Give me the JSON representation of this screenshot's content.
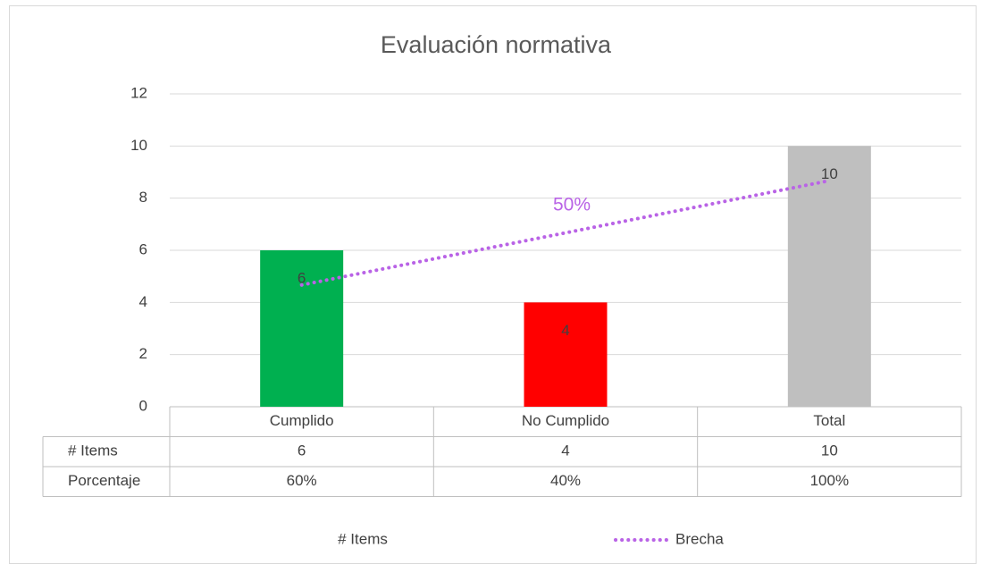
{
  "chart_data": {
    "type": "bar",
    "title": "Evaluación normativa",
    "categories": [
      "Cumplido",
      "No Cumplido",
      "Total"
    ],
    "series": [
      {
        "name": "# Items",
        "values": [
          6,
          4,
          10
        ],
        "colors": [
          "#00b050",
          "#ff0000",
          "#bfbfbf"
        ]
      }
    ],
    "trendline": {
      "name": "Brecha",
      "values": [
        4.67,
        6.67,
        8.67
      ],
      "color": "#b963e6",
      "label": "50%"
    },
    "table": {
      "row_label": "Porcentaje",
      "values": [
        "60%",
        "40%",
        "100%"
      ]
    },
    "ylim": [
      0,
      12
    ],
    "yticks": [
      0,
      2,
      4,
      6,
      8,
      10,
      12
    ],
    "grid": true
  }
}
